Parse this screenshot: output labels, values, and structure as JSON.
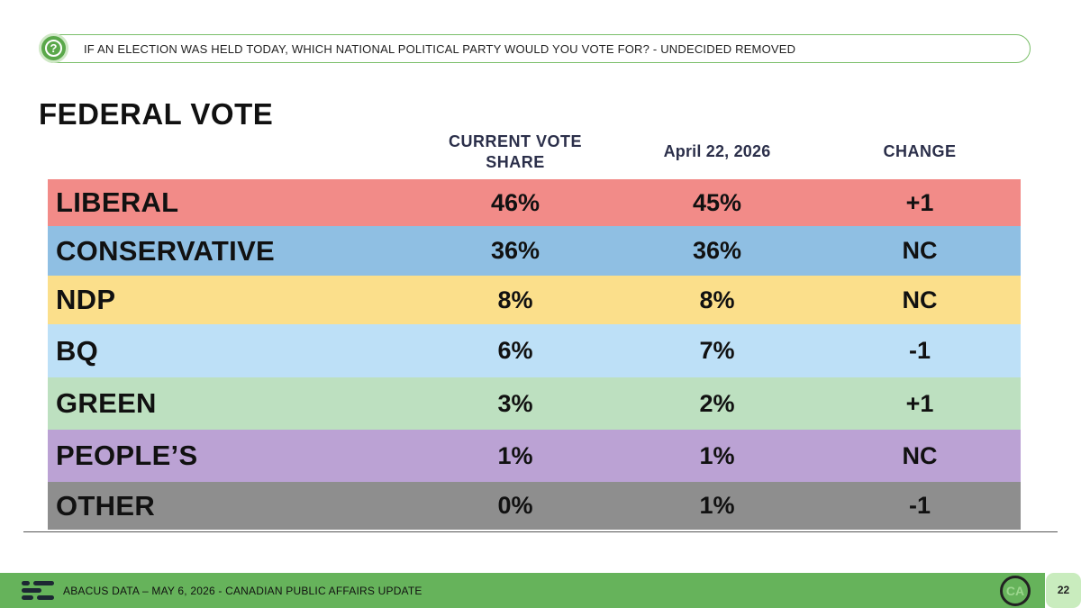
{
  "question": {
    "icon": "question-mark-icon",
    "text": "IF AN ELECTION WAS HELD TODAY, WHICH NATIONAL POLITICAL PARTY WOULD YOU VOTE FOR? - UNDECIDED REMOVED"
  },
  "title": "FEDERAL VOTE",
  "columns": {
    "current": "CURRENT VOTE SHARE",
    "previous": "April 22, 2026",
    "change": "CHANGE"
  },
  "chart_data": {
    "type": "table",
    "title": "FEDERAL VOTE",
    "columns": [
      "CURRENT VOTE SHARE",
      "April 22, 2026",
      "CHANGE"
    ],
    "rows": [
      {
        "party": "LIBERAL",
        "current": "46%",
        "previous": "45%",
        "change": "+1",
        "color": "#f28b88"
      },
      {
        "party": "CONSERVATIVE",
        "current": "36%",
        "previous": "36%",
        "change": "NC",
        "color": "#8fbfe3"
      },
      {
        "party": "NDP",
        "current": "8%",
        "previous": "8%",
        "change": "NC",
        "color": "#fbdf8b"
      },
      {
        "party": "BQ",
        "current": "6%",
        "previous": "7%",
        "change": "-1",
        "color": "#bde0f7"
      },
      {
        "party": "GREEN",
        "current": "3%",
        "previous": "2%",
        "change": "+1",
        "color": "#bde0c0"
      },
      {
        "party": "PEOPLE’S",
        "current": "1%",
        "previous": "1%",
        "change": "NC",
        "color": "#bba2d4"
      },
      {
        "party": "OTHER",
        "current": "0%",
        "previous": "1%",
        "change": "-1",
        "color": "#8e8e8e"
      }
    ]
  },
  "footer": {
    "logo_icon": "abacus-logo-icon",
    "text": "ABACUS DATA – MAY 6, 2026 - CANADIAN PUBLIC AFFAIRS UPDATE",
    "badge": "CA",
    "page_number": "22",
    "color": "#66b35b"
  }
}
